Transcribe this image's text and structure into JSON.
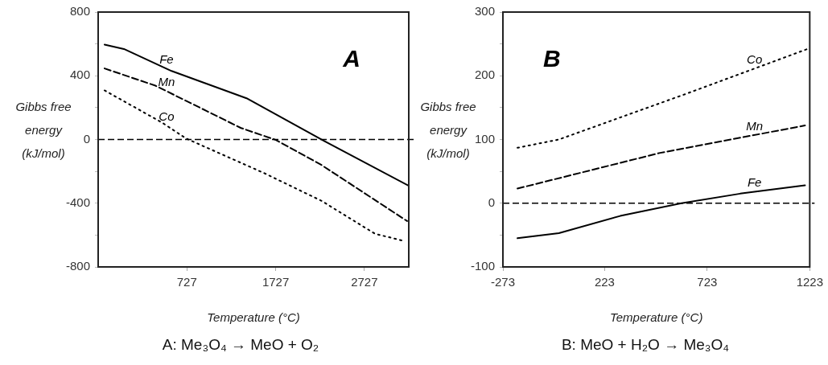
{
  "chart_data": [
    {
      "type": "line",
      "title": "A:  Me₃O₄ → MeO + O₂",
      "xlabel": "Temperature (°C)",
      "ylabel": "Gibbs free energy (kJ/mol)",
      "annotations": [
        "A"
      ],
      "xlim": [
        -273,
        3227
      ],
      "xticks": [
        727,
        1727,
        2727
      ],
      "ylim": [
        -800,
        800
      ],
      "yticks": [
        -800,
        {
          "value": -600,
          "label": null
        },
        -400,
        {
          "value": -200,
          "label": null
        },
        0,
        {
          "value": 200,
          "label": null
        },
        400,
        {
          "value": 600,
          "label": null
        },
        800
      ],
      "ref_lines": [
        {
          "axis": "y",
          "value": 0,
          "color": "#000000",
          "line_style": "dashed"
        }
      ],
      "series": [
        {
          "name": "Fe",
          "color": "#000000",
          "line_style": "solid",
          "x": [
            -201,
            17,
            554,
            1399,
            2274,
            3224
          ],
          "values": [
            596,
            568,
            430,
            259,
            -10,
            -290
          ]
        },
        {
          "name": "Mn",
          "color": "#000000",
          "line_style": "dashed",
          "x": [
            -201,
            372,
            1337,
            1730,
            2243,
            3208
          ],
          "values": [
            446,
            338,
            72,
            -3,
            -160,
            -512
          ]
        },
        {
          "name": "Co",
          "color": "#000000",
          "line_style": "dotted",
          "x": [
            -201,
            -5,
            447,
            719,
            1593,
            2243,
            2847,
            3179
          ],
          "values": [
            308,
            247,
            106,
            6,
            -210,
            -385,
            -592,
            -638
          ]
        }
      ]
    },
    {
      "type": "line",
      "title": "B: MeO + H₂O → Me₃O₄",
      "xlabel": "Temperature (°C)",
      "ylabel": "Gibbs free energy (kJ/mol)",
      "annotations": [
        "B"
      ],
      "xlim": [
        -273,
        1223
      ],
      "xticks": [
        -273,
        223,
        723,
        1223
      ],
      "ylim": [
        -100,
        300
      ],
      "yticks": [
        -100,
        {
          "value": -50,
          "label": null
        },
        0,
        {
          "value": 50,
          "label": null
        },
        100,
        {
          "value": 150,
          "label": null
        },
        200,
        {
          "value": 250,
          "label": null
        },
        300
      ],
      "ref_lines": [
        {
          "axis": "y",
          "value": 0,
          "color": "#000000",
          "line_style": "dashed"
        }
      ],
      "series": [
        {
          "name": "Fe",
          "color": "#000000",
          "line_style": "solid",
          "x": [
            -202,
            0,
            299,
            598,
            884,
            1200
          ],
          "values": [
            -55,
            -47,
            -20,
            0,
            15,
            28
          ]
        },
        {
          "name": "Mn",
          "color": "#000000",
          "line_style": "dashed",
          "x": [
            -202,
            494,
            1200
          ],
          "values": [
            23,
            79,
            122
          ]
        },
        {
          "name": "Co",
          "color": "#000000",
          "line_style": "dotted",
          "x": [
            -202,
            0,
            623,
            1220
          ],
          "values": [
            87,
            100,
            172,
            243
          ]
        }
      ]
    }
  ]
}
